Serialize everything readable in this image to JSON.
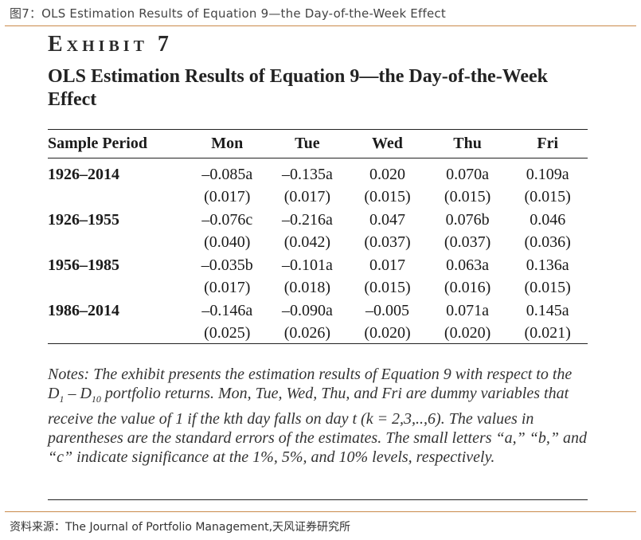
{
  "figure_caption": "图7：OLS Estimation Results of Equation 9—the Day-of-the-Week Effect",
  "exhibit": {
    "label": "Exhibit 7",
    "title": "OLS Estimation Results of Equation 9—the Day-of-the-Week Effect"
  },
  "table": {
    "headers": [
      "Sample Period",
      "Mon",
      "Tue",
      "Wed",
      "Thu",
      "Fri"
    ],
    "rows": [
      {
        "period": "1926–2014",
        "estimates": [
          "–0.085a",
          "–0.135a",
          "0.020",
          "0.070a",
          "0.109a"
        ],
        "std_errors": [
          "(0.017)",
          "(0.017)",
          "(0.015)",
          "(0.015)",
          "(0.015)"
        ]
      },
      {
        "period": "1926–1955",
        "estimates": [
          "–0.076c",
          "–0.216a",
          "0.047",
          "0.076b",
          "0.046"
        ],
        "std_errors": [
          "(0.040)",
          "(0.042)",
          "(0.037)",
          "(0.037)",
          "(0.036)"
        ]
      },
      {
        "period": "1956–1985",
        "estimates": [
          "–0.035b",
          "–0.101a",
          "0.017",
          "0.063a",
          "0.136a"
        ],
        "std_errors": [
          "(0.017)",
          "(0.018)",
          "(0.015)",
          "(0.016)",
          "(0.015)"
        ]
      },
      {
        "period": "1986–2014",
        "estimates": [
          "–0.146a",
          "–0.090a",
          "–0.005",
          "0.071a",
          "0.145a"
        ],
        "std_errors": [
          "(0.025)",
          "(0.026)",
          "(0.020)",
          "(0.020)",
          "(0.021)"
        ]
      }
    ]
  },
  "notes": {
    "part1": "Notes: The exhibit presents the estimation results of Equation 9 with respect to the ",
    "d1": "D",
    "d1_sub": "1",
    "dash": " – ",
    "d10": "D",
    "d10_sub": "10",
    "part2": " portfolio returns. Mon, Tue, Wed, Thu, and Fri are dummy variables that receive the value of 1 if the kth day falls on day t (k = 2,3,..,6). The values in parentheses are the standard errors of the estimates. The small letters “a,” “b,” and “c” indicate significance at the 1%, 5%, and 10% levels, respectively."
  },
  "source": "资料来源：The Journal of Portfolio Management,天风证券研究所"
}
